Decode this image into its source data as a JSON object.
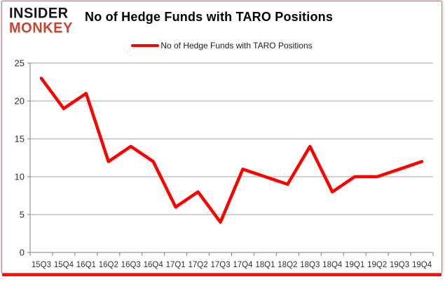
{
  "brand": {
    "line1": "INSIDER",
    "line2": "MONKEY",
    "accent_color": "#c94331"
  },
  "header": {
    "title": "No of Hedge Funds with TARO Positions"
  },
  "legend": {
    "label": "No of Hedge Funds with TARO Positions",
    "marker_color": "#ff0000"
  },
  "chart_data": {
    "type": "line",
    "title": "No of Hedge Funds with TARO Positions",
    "categories": [
      "15Q3",
      "15Q4",
      "16Q1",
      "16Q2",
      "16Q3",
      "16Q4",
      "17Q1",
      "17Q2",
      "17Q3",
      "17Q4",
      "18Q1",
      "18Q2",
      "18Q3",
      "18Q4",
      "19Q1",
      "19Q2",
      "19Q3",
      "19Q4"
    ],
    "series": [
      {
        "name": "No of Hedge Funds with TARO Positions",
        "color": "#ff0000",
        "values": [
          23,
          19,
          21,
          12,
          14,
          12,
          6,
          8,
          4,
          11,
          10,
          9,
          14,
          8,
          10,
          10,
          11,
          12
        ]
      }
    ],
    "xlabel": "",
    "ylabel": "",
    "ylim": [
      0,
      25
    ],
    "yticks": [
      0,
      5,
      10,
      15,
      20,
      25
    ],
    "grid": true,
    "legend_position": "top",
    "colors": {
      "gridline": "#a0a0a0",
      "axis": "#7f7f7f",
      "tick_label": "#303030"
    }
  }
}
